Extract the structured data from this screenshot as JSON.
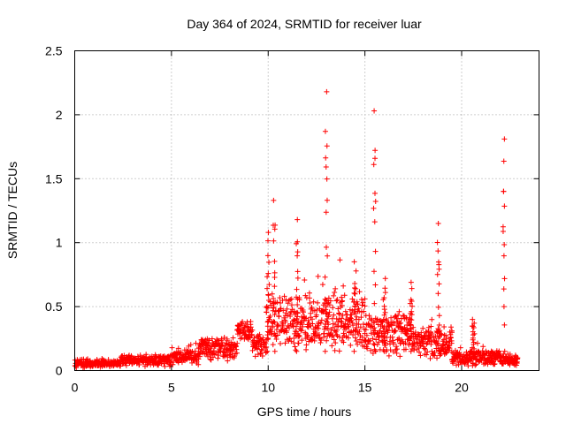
{
  "chart_data": {
    "type": "scatter",
    "title": "Day 364 of 2024, SRMTID for receiver luar",
    "xlabel": "GPS time / hours",
    "ylabel": "SRMTID / TECUs",
    "xlim": [
      0,
      24
    ],
    "ylim": [
      0,
      2.5
    ],
    "grid": true,
    "marker": "+",
    "color": "#ff0000",
    "x_ticks": [
      0,
      5,
      10,
      15,
      20
    ],
    "x_tick_labels": [
      "0",
      "5",
      "10",
      "15",
      "20"
    ],
    "y_ticks": [
      0,
      0.5,
      1,
      1.5,
      2,
      2.5
    ],
    "y_tick_labels": [
      "0",
      "0.5",
      "1",
      "1.5",
      "2",
      "2.5"
    ],
    "series": [
      {
        "name": "SRMTID",
        "segments": [
          {
            "t0": 0.0,
            "t1": 2.4,
            "base": 0.055,
            "spread": 0.035
          },
          {
            "t0": 2.4,
            "t1": 5.0,
            "base": 0.08,
            "spread": 0.05
          },
          {
            "t0": 5.0,
            "t1": 6.4,
            "base": 0.11,
            "spread": 0.07
          },
          {
            "t0": 6.4,
            "t1": 8.4,
            "base": 0.17,
            "spread": 0.1
          },
          {
            "t0": 8.4,
            "t1": 9.2,
            "base": 0.3,
            "spread": 0.1
          },
          {
            "t0": 9.2,
            "t1": 9.9,
            "base": 0.2,
            "spread": 0.1
          },
          {
            "t0": 9.9,
            "t1": 15.0,
            "base": 0.38,
            "spread": 0.25
          },
          {
            "t0": 15.0,
            "t1": 17.5,
            "base": 0.3,
            "spread": 0.2
          },
          {
            "t0": 17.5,
            "t1": 19.5,
            "base": 0.22,
            "spread": 0.14
          },
          {
            "t0": 19.5,
            "t1": 22.0,
            "base": 0.1,
            "spread": 0.07
          },
          {
            "t0": 22.0,
            "t1": 22.9,
            "base": 0.08,
            "spread": 0.05
          }
        ],
        "bursts": [
          {
            "t": 10.0,
            "peak": 1.08
          },
          {
            "t": 10.3,
            "peak": 1.33
          },
          {
            "t": 11.5,
            "peak": 1.18
          },
          {
            "t": 13.0,
            "peak": 2.18
          },
          {
            "t": 14.5,
            "peak": 0.85
          },
          {
            "t": 15.5,
            "peak": 2.03
          },
          {
            "t": 16.0,
            "peak": 0.72
          },
          {
            "t": 17.4,
            "peak": 0.69
          },
          {
            "t": 18.8,
            "peak": 1.15
          },
          {
            "t": 20.6,
            "peak": 0.4
          },
          {
            "t": 22.2,
            "peak": 1.81
          }
        ]
      }
    ]
  }
}
